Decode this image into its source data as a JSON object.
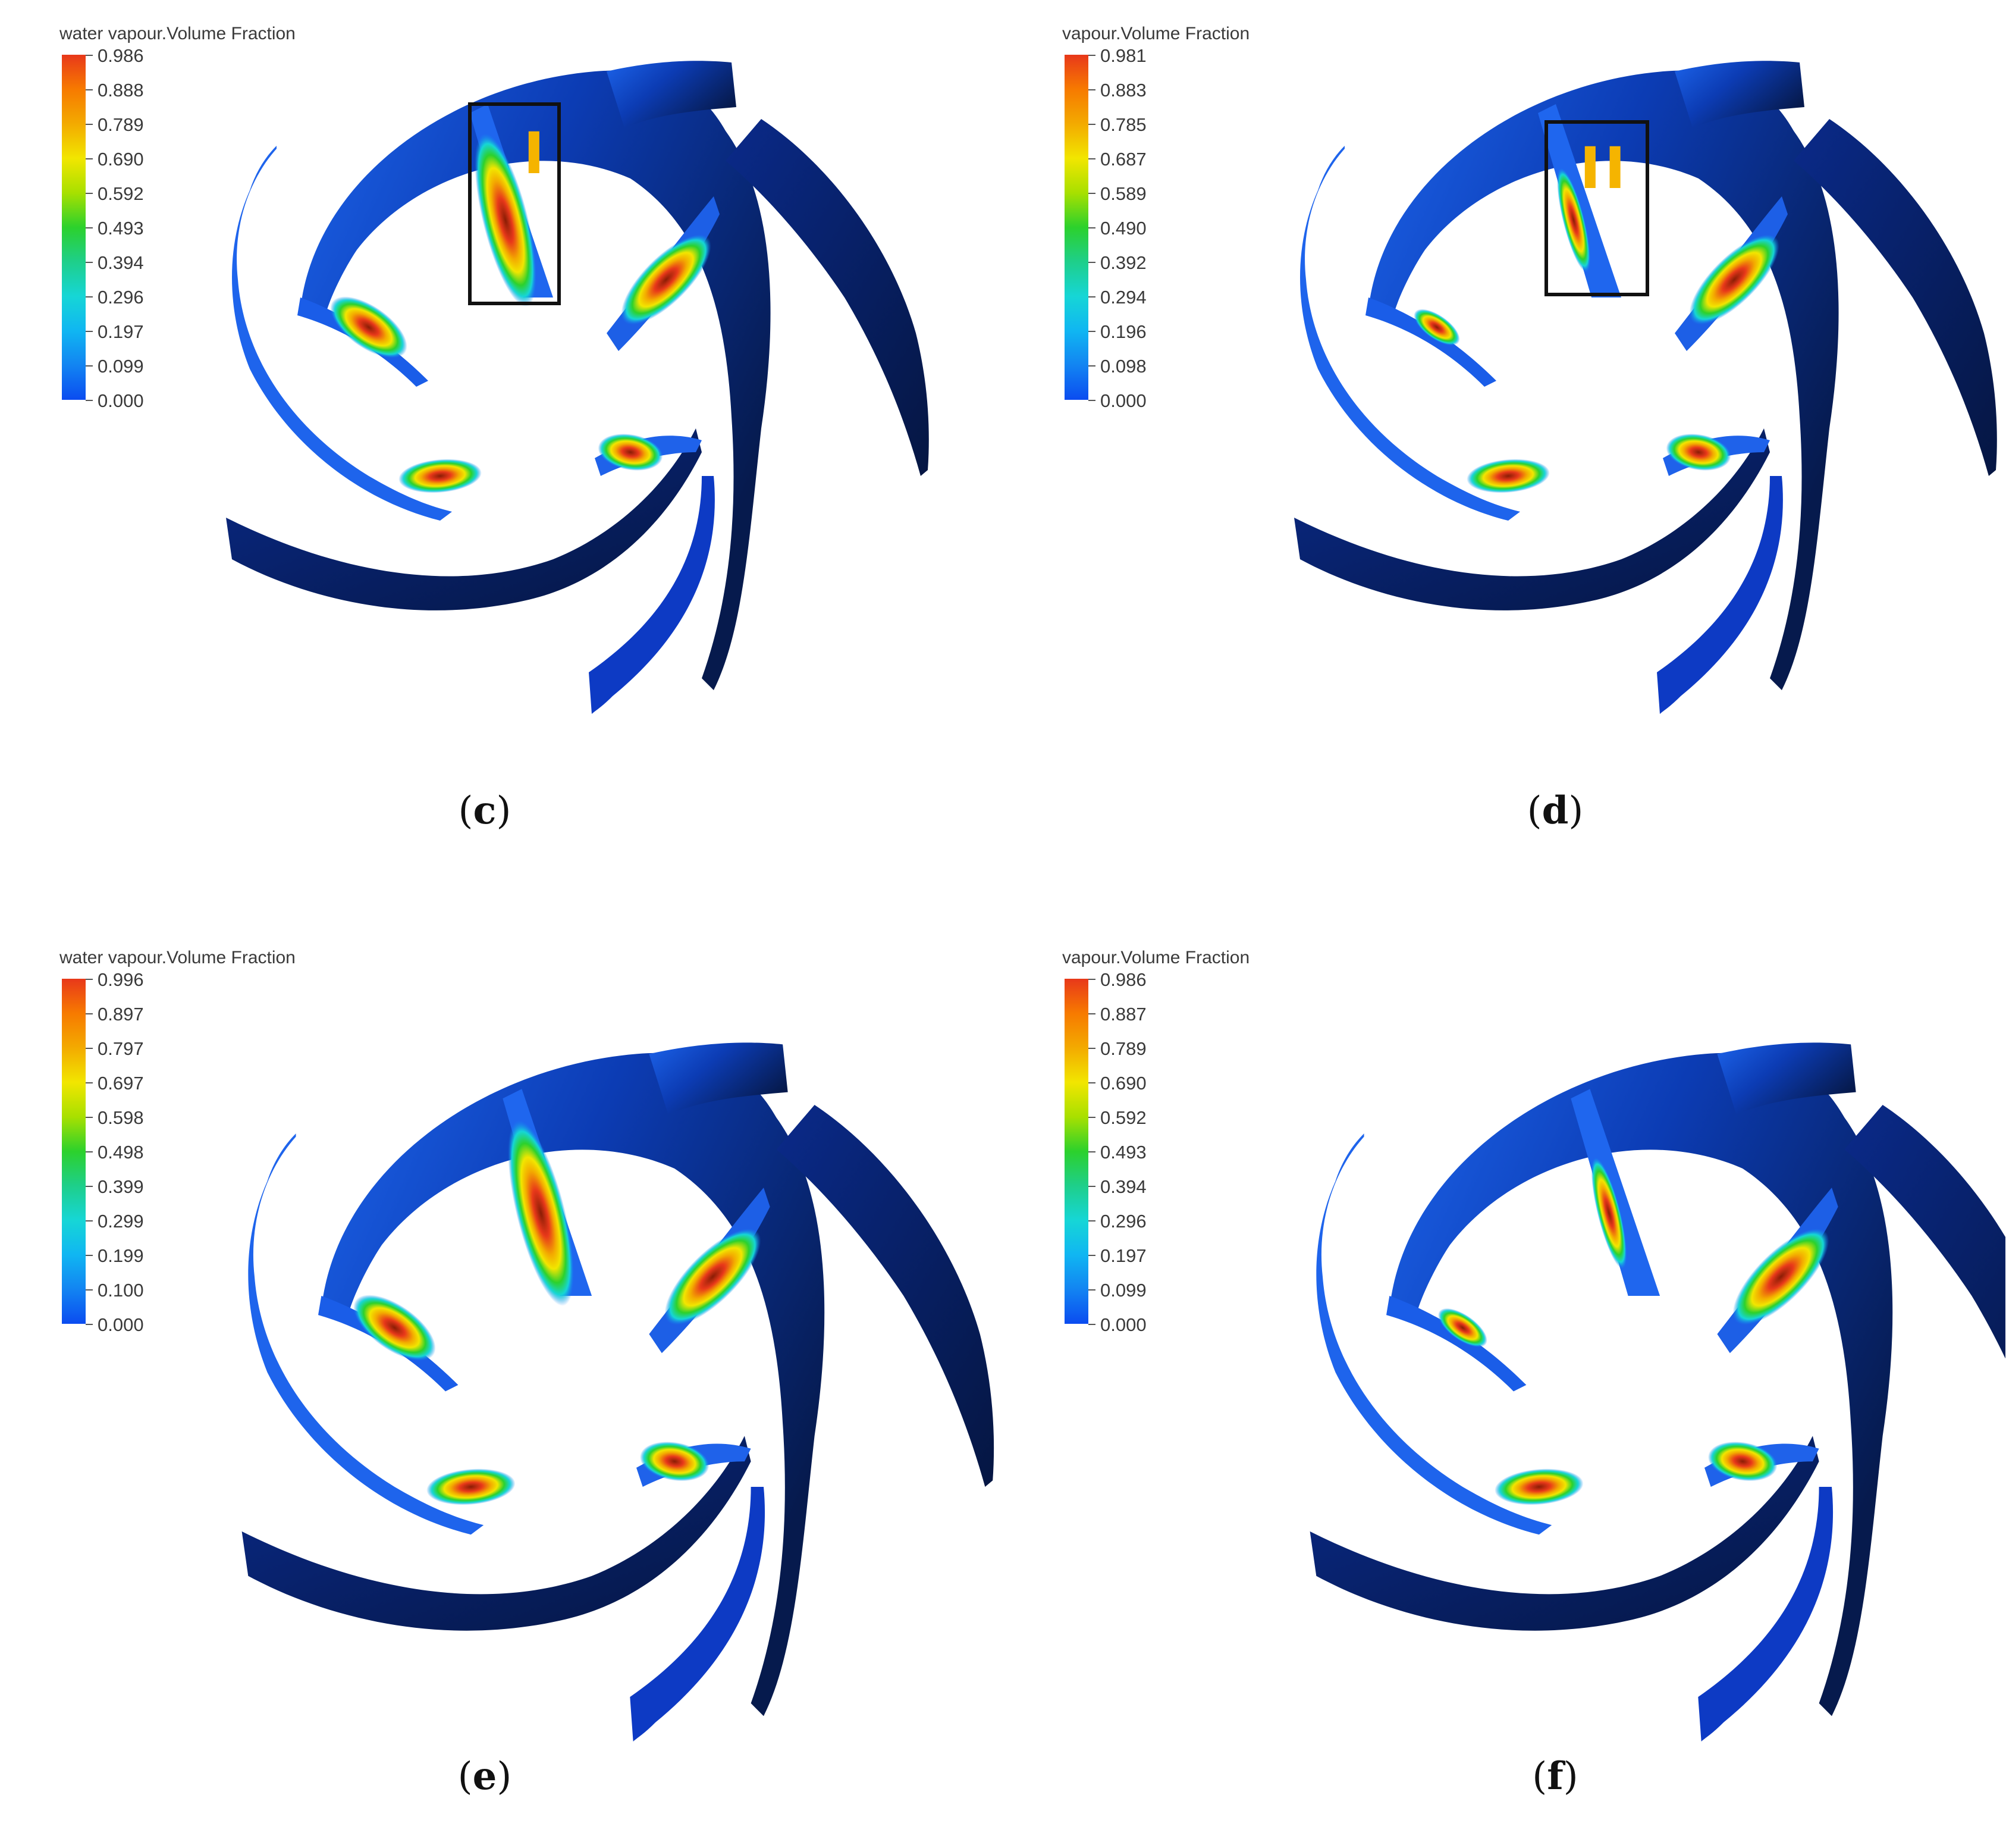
{
  "figure": {
    "panels": [
      {
        "id": "c",
        "caption": "c",
        "legend_title": "water vapour.Volume Fraction",
        "ticks": [
          "0.986",
          "0.888",
          "0.789",
          "0.690",
          "0.592",
          "0.493",
          "0.394",
          "0.296",
          "0.197",
          "0.099",
          "0.000"
        ],
        "marker_label": "I",
        "has_box": true
      },
      {
        "id": "d",
        "caption": "d",
        "legend_title": "vapour.Volume Fraction",
        "ticks": [
          "0.981",
          "0.883",
          "0.785",
          "0.687",
          "0.589",
          "0.490",
          "0.392",
          "0.294",
          "0.196",
          "0.098",
          "0.000"
        ],
        "marker_label": "II",
        "has_box": true
      },
      {
        "id": "e",
        "caption": "e",
        "legend_title": "water vapour.Volume Fraction",
        "ticks": [
          "0.996",
          "0.897",
          "0.797",
          "0.697",
          "0.598",
          "0.498",
          "0.399",
          "0.299",
          "0.199",
          "0.100",
          "0.000"
        ],
        "marker_label": "",
        "has_box": false
      },
      {
        "id": "f",
        "caption": "f",
        "legend_title": "vapour.Volume Fraction",
        "ticks": [
          "0.986",
          "0.887",
          "0.789",
          "0.690",
          "0.592",
          "0.493",
          "0.394",
          "0.296",
          "0.197",
          "0.099",
          "0.000"
        ],
        "marker_label": "",
        "has_box": false
      }
    ],
    "colormap": [
      "#e8381a",
      "#f77a00",
      "#f3aa00",
      "#f2e600",
      "#a8e000",
      "#2cd12c",
      "#1ecf8a",
      "#16d6d6",
      "#10b6f2",
      "#1284f2",
      "#0b4cf0"
    ],
    "colors": {
      "blade_light": "#1659e6",
      "blade_dark": "#061a4d",
      "box": "#111111",
      "marker": "#f5b400"
    }
  }
}
